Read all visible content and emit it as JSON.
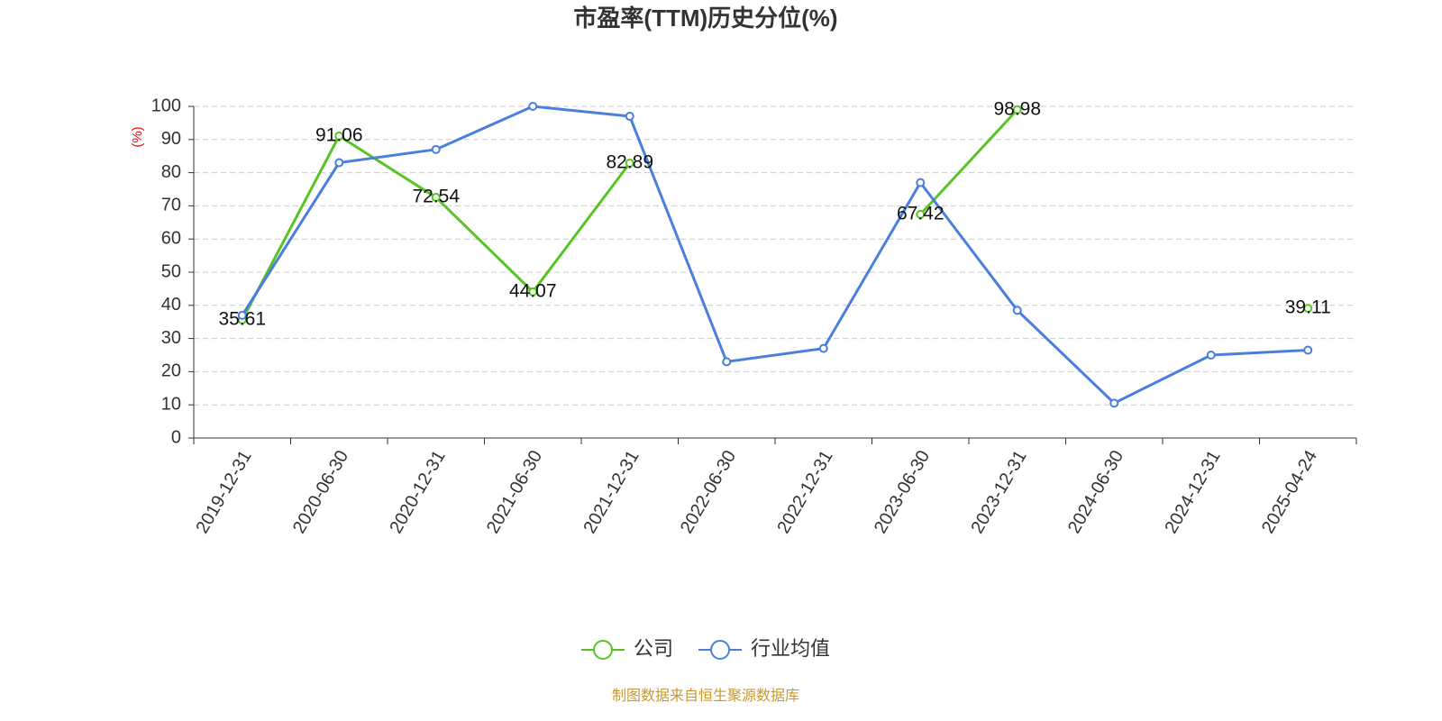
{
  "chart_data": {
    "type": "line",
    "title": "市盈率(TTM)历史分位(%)",
    "y_label": "(%)",
    "categories": [
      "2019-12-31",
      "2020-06-30",
      "2020-12-31",
      "2021-06-30",
      "2021-12-31",
      "2022-06-30",
      "2022-12-31",
      "2023-06-30",
      "2023-12-31",
      "2024-06-30",
      "2024-12-31",
      "2025-04-24"
    ],
    "series": [
      {
        "name": "公司",
        "color": "#58c422",
        "labels": true,
        "values": [
          35.61,
          91.06,
          72.54,
          44.07,
          82.89,
          null,
          null,
          67.42,
          98.98,
          null,
          null,
          39.11
        ]
      },
      {
        "name": "行业均值",
        "color": "#4a7fdc",
        "labels": false,
        "values": [
          37,
          83,
          87,
          100,
          97,
          23,
          27,
          77,
          38.5,
          10.5,
          25,
          26.5
        ]
      }
    ],
    "ylim": [
      0,
      100
    ],
    "yticks": [
      0,
      10,
      20,
      30,
      40,
      50,
      60,
      70,
      80,
      90,
      100
    ],
    "grid": true,
    "legend": "bottom",
    "source": "制图数据来自恒生聚源数据库"
  }
}
